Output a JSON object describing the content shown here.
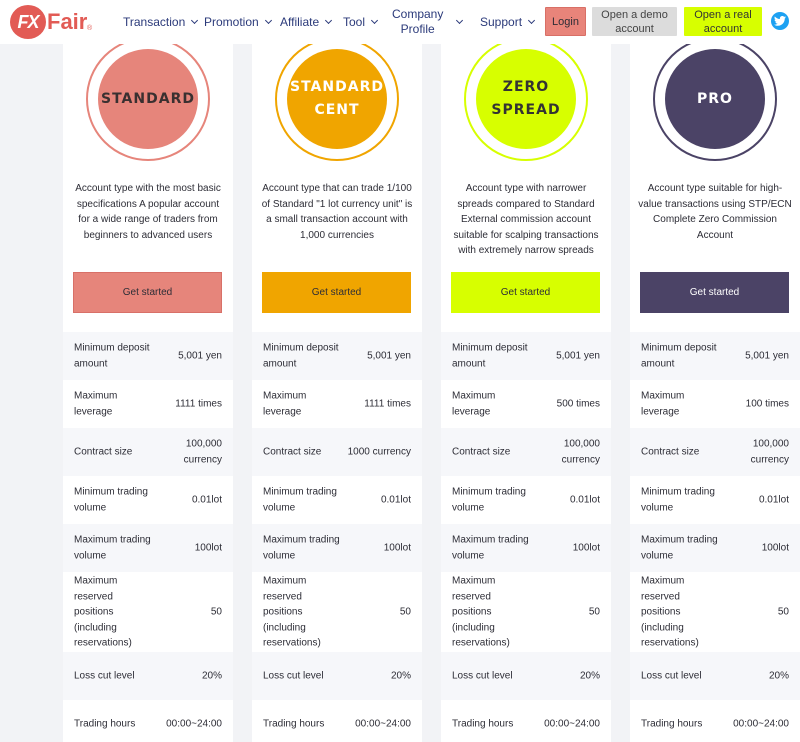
{
  "header": {
    "logo_fx": "FX",
    "logo_fair": "Fair",
    "logo_reg": "®",
    "nav": [
      {
        "label": "Transaction"
      },
      {
        "label": "Promotion"
      },
      {
        "label": "Affiliate"
      },
      {
        "label": "Tool"
      },
      {
        "label_line1": "Company",
        "label_line2": "Profile"
      },
      {
        "label": "Support"
      }
    ],
    "login": "Login",
    "demo_line1": "Open a demo",
    "demo_line2": "account",
    "real_line1": "Open a real",
    "real_line2": "account",
    "social_icon": "twitter-icon"
  },
  "colors": {
    "standard": "#e6857b",
    "standard_cent": "#f0a500",
    "zero_spread": "#d7ff00",
    "pro": "#4b4366",
    "brand": "#e25b55"
  },
  "row_labels": [
    "Minimum deposit amount",
    "Maximum leverage",
    "Contract size",
    "Minimum trading volume",
    "Maximum trading volume",
    "Maximum reserved positions (including reservations)",
    "Loss cut level",
    "Trading hours"
  ],
  "plans": [
    {
      "name_line1": "STANDARD",
      "name_line2": "",
      "desc": "Account type with the most basic specifications A popular account for a wide range of traders from beginners to advanced users",
      "cta": "Get started",
      "values": [
        "5,001 yen",
        "1111 times",
        "100,000 currency",
        "0.01lot",
        "100lot",
        "50",
        "20%",
        "00:00~24:00"
      ]
    },
    {
      "name_line1": "STANDARD",
      "name_line2": "CENT",
      "desc": "Account type that can trade 1/100 of Standard \"1 lot currency unit\" is a small transaction account with 1,000 currencies",
      "cta": "Get started",
      "values": [
        "5,001 yen",
        "1111 times",
        "1000 currency",
        "0.01lot",
        "100lot",
        "50",
        "20%",
        "00:00~24:00"
      ]
    },
    {
      "name_line1": "ZERO",
      "name_line2": "SPREAD",
      "desc": "Account type with narrower spreads compared to Standard External commission account suitable for scalping transactions with extremely narrow spreads",
      "cta": "Get started",
      "values": [
        "5,001 yen",
        "500 times",
        "100,000 currency",
        "0.01lot",
        "100lot",
        "50",
        "20%",
        "00:00~24:00"
      ]
    },
    {
      "name_line1": "PRO",
      "name_line2": "",
      "desc": "Account type suitable for high-value transactions using STP/ECN Complete Zero Commission Account",
      "cta": "Get started",
      "values": [
        "5,001 yen",
        "100 times",
        "100,000 currency",
        "0.01lot",
        "100lot",
        "50",
        "20%",
        "00:00~24:00"
      ]
    }
  ]
}
